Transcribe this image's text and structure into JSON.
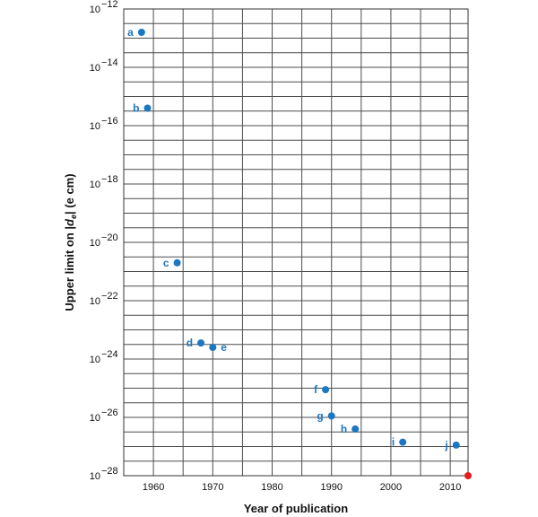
{
  "chart_data": {
    "type": "scatter",
    "title": "",
    "xlabel": "Year of publication",
    "ylabel_parts": [
      "Upper limit on |",
      "d",
      "e",
      "| (e cm)"
    ],
    "xlim": [
      1955,
      2013
    ],
    "ylim_log10": [
      -28,
      -12
    ],
    "x_ticks": [
      {
        "value": 1960,
        "label": "1960"
      },
      {
        "value": 1970,
        "label": "1970"
      },
      {
        "value": 1980,
        "label": "1980"
      },
      {
        "value": 1990,
        "label": "1990"
      },
      {
        "value": 2000,
        "label": "2000"
      },
      {
        "value": 2010,
        "label": "2010"
      }
    ],
    "y_ticks": [
      {
        "exp": -28,
        "base": "10",
        "power": "−28"
      },
      {
        "exp": -26,
        "base": "10",
        "power": "−26"
      },
      {
        "exp": -24,
        "base": "10",
        "power": "−24"
      },
      {
        "exp": -22,
        "base": "10",
        "power": "−22"
      },
      {
        "exp": -20,
        "base": "10",
        "power": "−20"
      },
      {
        "exp": -18,
        "base": "10",
        "power": "−18"
      },
      {
        "exp": -16,
        "base": "10",
        "power": "−16"
      },
      {
        "exp": -14,
        "base": "10",
        "power": "−14"
      },
      {
        "exp": -12,
        "base": "10",
        "power": "−12"
      }
    ],
    "points": [
      {
        "label": "a",
        "year": 1958,
        "log10_value": -12.8,
        "label_side": "left",
        "color": "#1c77c3"
      },
      {
        "label": "b",
        "year": 1959,
        "log10_value": -15.4,
        "label_side": "left",
        "color": "#1c77c3"
      },
      {
        "label": "c",
        "year": 1964,
        "log10_value": -20.7,
        "label_side": "left",
        "color": "#1c77c3"
      },
      {
        "label": "d",
        "year": 1968,
        "log10_value": -23.45,
        "label_side": "left",
        "color": "#1c77c3"
      },
      {
        "label": "e",
        "year": 1970,
        "log10_value": -23.6,
        "label_side": "right",
        "color": "#1c77c3"
      },
      {
        "label": "f",
        "year": 1989,
        "log10_value": -25.05,
        "label_side": "left",
        "color": "#1c77c3"
      },
      {
        "label": "g",
        "year": 1990,
        "log10_value": -25.95,
        "label_side": "left",
        "color": "#1c77c3"
      },
      {
        "label": "h",
        "year": 1994,
        "log10_value": -26.4,
        "label_side": "left",
        "color": "#1c77c3"
      },
      {
        "label": "i",
        "year": 2002,
        "log10_value": -26.85,
        "label_side": "left",
        "color": "#1c77c3"
      },
      {
        "label": "j",
        "year": 2011,
        "log10_value": -26.95,
        "label_side": "left",
        "color": "#1c77c3"
      },
      {
        "label": "",
        "year": 2013,
        "log10_value": -28,
        "label_side": "none",
        "color": "#e01f1f"
      }
    ],
    "grid": true,
    "grid_minor_per_decade": 2
  }
}
